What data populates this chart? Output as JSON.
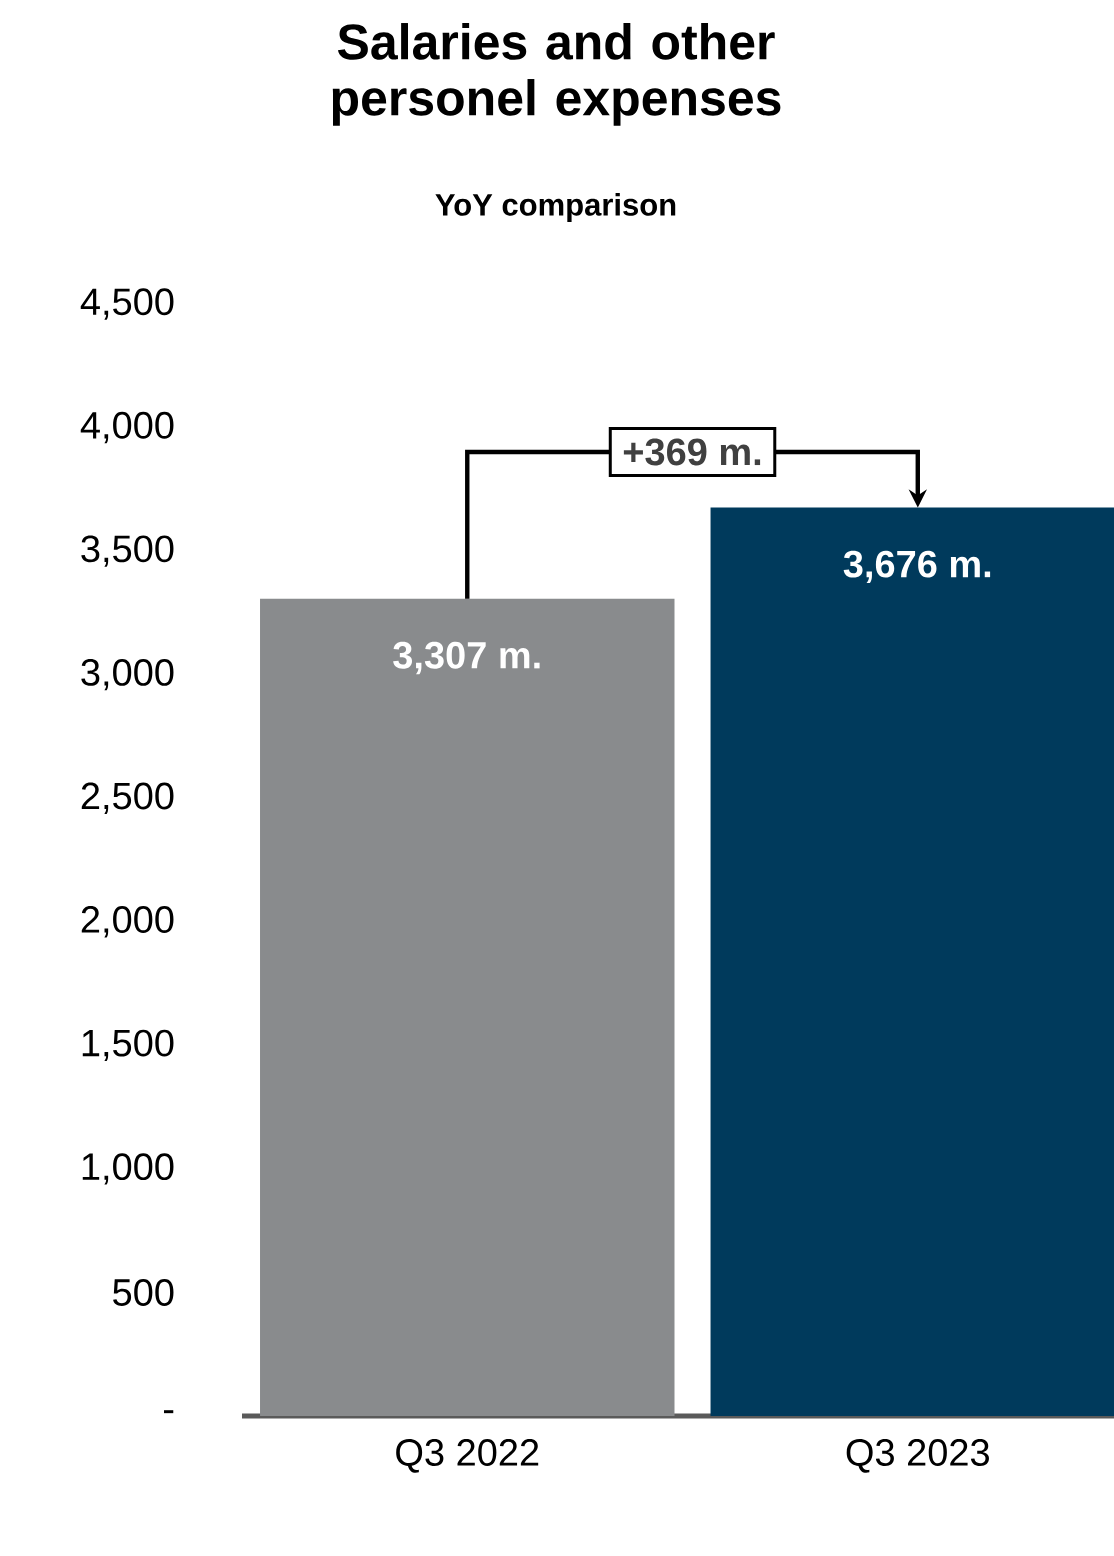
{
  "chart_data": {
    "type": "bar",
    "title": "Salaries and other personel expenses",
    "subtitle": "YoY comparison",
    "categories": [
      "Q3 2022",
      "Q3 2023"
    ],
    "values": [
      3307,
      3676
    ],
    "colors": [
      "#898b8d",
      "#003a5c"
    ],
    "value_labels": [
      "3,307 m.",
      "3,676 m."
    ],
    "annotations": [
      "+369 m."
    ],
    "ylim": [
      0,
      4500
    ],
    "yticks": [
      {
        "value": 0,
        "label": "-"
      },
      500,
      {
        "value": 1000,
        "label": "1,000"
      },
      {
        "value": 1500,
        "label": "1,500"
      },
      {
        "value": 2000,
        "label": "2,000"
      },
      {
        "value": 2500,
        "label": "2,500"
      },
      {
        "value": 3000,
        "label": "3,000"
      },
      {
        "value": 3500,
        "label": "3,500"
      },
      {
        "value": 4000,
        "label": "4,000"
      },
      {
        "value": 4500,
        "label": "4,500"
      }
    ]
  }
}
